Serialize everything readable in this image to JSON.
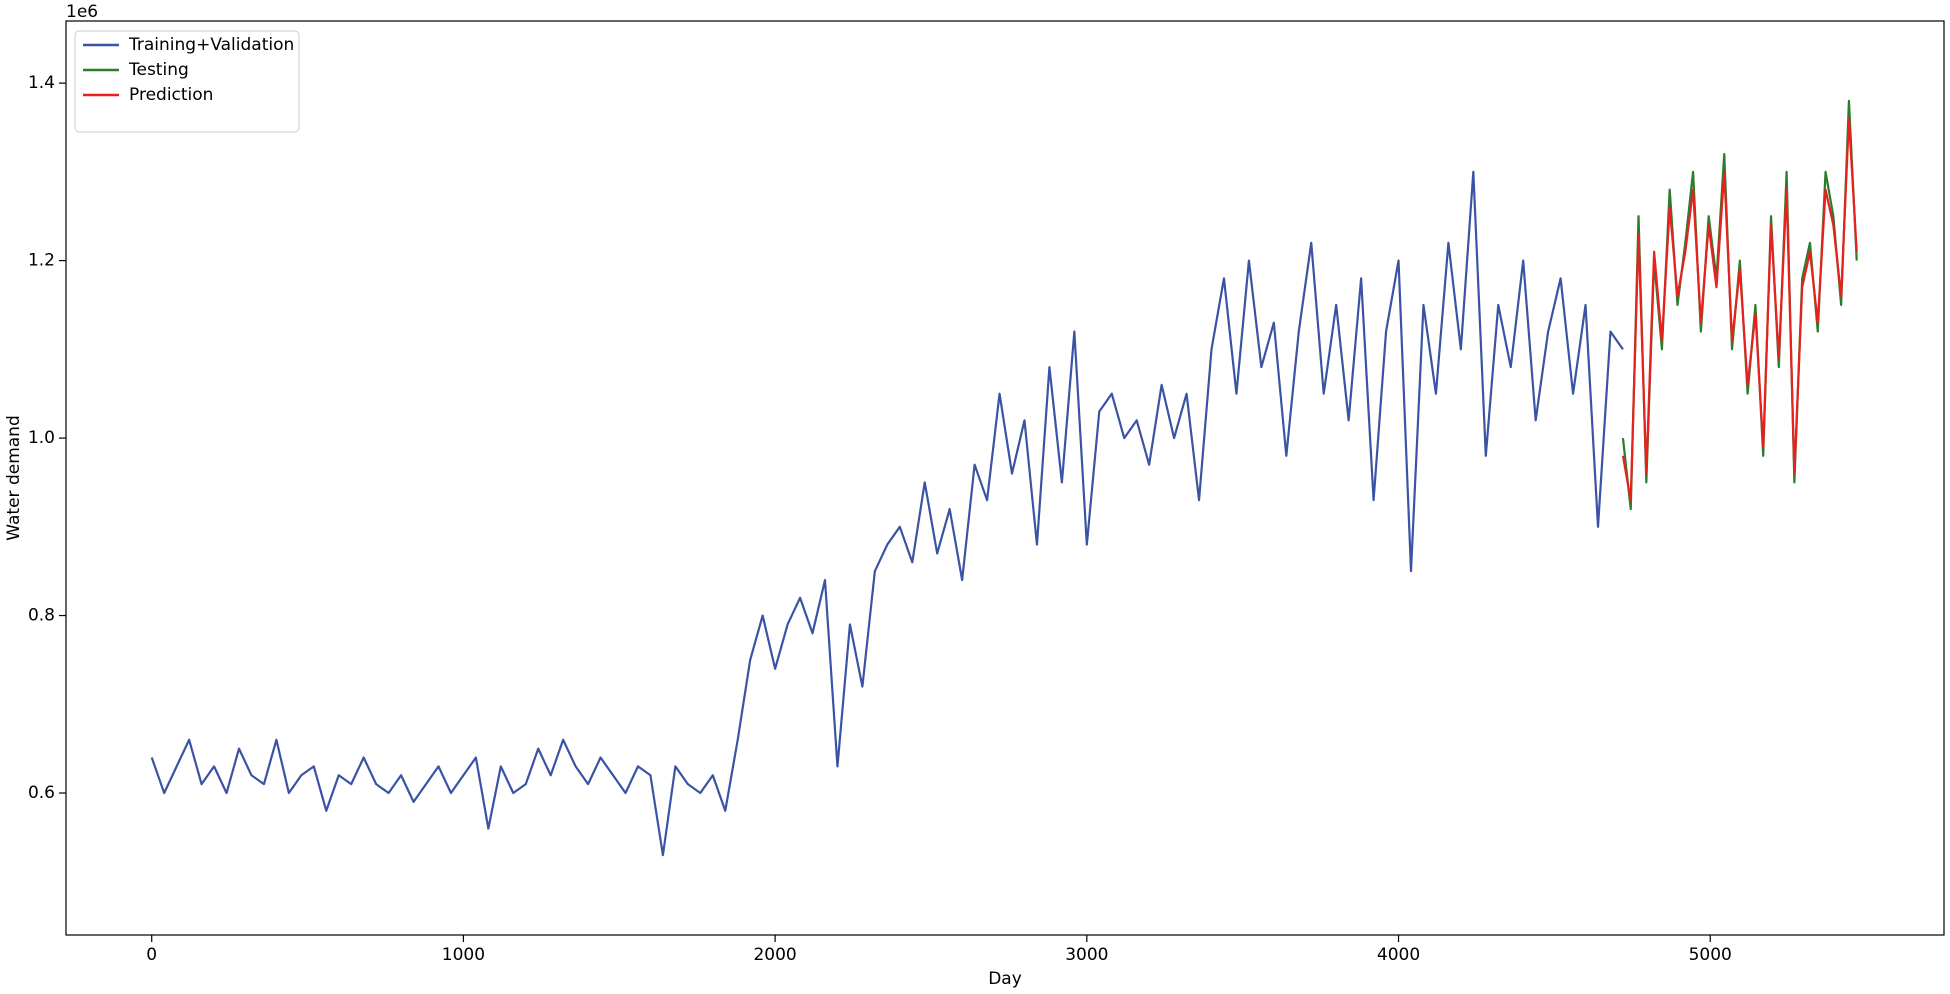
{
  "chart_data": {
    "type": "line",
    "xlabel": "Day",
    "ylabel": "Water demand",
    "y_offset_label": "1e6",
    "xlim": [
      -275,
      5750
    ],
    "xticks": [
      0,
      1000,
      2000,
      3000,
      4000,
      5000
    ],
    "ylim": [
      0.44,
      1.47
    ],
    "yticks": [
      0.6,
      0.8,
      {
        "value": 1,
        "label": "1.0"
      },
      1.2,
      1.4
    ],
    "legend": "upper left",
    "series": [
      {
        "name": "Training+Validation",
        "color": "#3a53a4",
        "x": [
          0,
          40,
          80,
          120,
          160,
          200,
          240,
          280,
          320,
          360,
          400,
          440,
          480,
          520,
          560,
          600,
          640,
          680,
          720,
          760,
          800,
          840,
          880,
          920,
          960,
          1000,
          1040,
          1080,
          1120,
          1160,
          1200,
          1240,
          1280,
          1320,
          1360,
          1400,
          1440,
          1480,
          1520,
          1560,
          1600,
          1640,
          1680,
          1720,
          1760,
          1800,
          1840,
          1880,
          1920,
          1960,
          2000,
          2040,
          2080,
          2120,
          2160,
          2200,
          2240,
          2280,
          2320,
          2360,
          2400,
          2440,
          2480,
          2520,
          2560,
          2600,
          2640,
          2680,
          2720,
          2760,
          2800,
          2840,
          2880,
          2920,
          2960,
          3000,
          3040,
          3080,
          3120,
          3160,
          3200,
          3240,
          3280,
          3320,
          3360,
          3400,
          3440,
          3480,
          3520,
          3560,
          3600,
          3640,
          3680,
          3720,
          3760,
          3800,
          3840,
          3880,
          3920,
          3960,
          4000,
          4040,
          4080,
          4120,
          4160,
          4200,
          4240,
          4280,
          4320,
          4360,
          4400,
          4440,
          4480,
          4520,
          4560,
          4600,
          4640,
          4680,
          4720
        ],
        "values": [
          0.64,
          0.6,
          0.63,
          0.66,
          0.61,
          0.63,
          0.6,
          0.65,
          0.62,
          0.61,
          0.66,
          0.6,
          0.62,
          0.63,
          0.58,
          0.62,
          0.61,
          0.64,
          0.61,
          0.6,
          0.62,
          0.59,
          0.61,
          0.63,
          0.6,
          0.62,
          0.64,
          0.56,
          0.63,
          0.6,
          0.61,
          0.65,
          0.62,
          0.66,
          0.63,
          0.61,
          0.64,
          0.62,
          0.6,
          0.63,
          0.62,
          0.53,
          0.63,
          0.61,
          0.6,
          0.62,
          0.58,
          0.66,
          0.75,
          0.8,
          0.74,
          0.79,
          0.82,
          0.78,
          0.84,
          0.63,
          0.79,
          0.72,
          0.85,
          0.88,
          0.9,
          0.86,
          0.95,
          0.87,
          0.92,
          0.84,
          0.97,
          0.93,
          1.05,
          0.96,
          1.02,
          0.88,
          1.08,
          0.95,
          1.12,
          0.88,
          1.03,
          1.05,
          1.0,
          1.02,
          0.97,
          1.06,
          1.0,
          1.05,
          0.93,
          1.1,
          1.18,
          1.05,
          1.2,
          1.08,
          1.13,
          0.98,
          1.12,
          1.22,
          1.05,
          1.15,
          1.02,
          1.18,
          0.93,
          1.12,
          1.2,
          0.85,
          1.15,
          1.05,
          1.22,
          1.1,
          1.3,
          0.98,
          1.15,
          1.08,
          1.2,
          1.02,
          1.12,
          1.18,
          1.05,
          1.15,
          0.9,
          1.12,
          1.1
        ]
      },
      {
        "name": "Testing",
        "color": "#2a7d2e",
        "x": [
          4720,
          4745,
          4770,
          4795,
          4820,
          4845,
          4870,
          4895,
          4920,
          4945,
          4970,
          4995,
          5020,
          5045,
          5070,
          5095,
          5120,
          5145,
          5170,
          5195,
          5220,
          5245,
          5270,
          5295,
          5320,
          5345,
          5370,
          5395,
          5420,
          5445,
          5470
        ],
        "values": [
          1.0,
          0.92,
          1.25,
          0.95,
          1.2,
          1.1,
          1.28,
          1.15,
          1.22,
          1.3,
          1.12,
          1.25,
          1.18,
          1.32,
          1.1,
          1.2,
          1.05,
          1.15,
          0.98,
          1.25,
          1.08,
          1.3,
          0.95,
          1.18,
          1.22,
          1.12,
          1.3,
          1.25,
          1.15,
          1.38,
          1.2
        ]
      },
      {
        "name": "Prediction",
        "color": "#e8201e",
        "x": [
          4720,
          4745,
          4770,
          4795,
          4820,
          4845,
          4870,
          4895,
          4920,
          4945,
          4970,
          4995,
          5020,
          5045,
          5070,
          5095,
          5120,
          5145,
          5170,
          5195,
          5220,
          5245,
          5270,
          5295,
          5320,
          5345,
          5370,
          5395,
          5420,
          5445,
          5470
        ],
        "values": [
          0.98,
          0.93,
          1.23,
          0.96,
          1.21,
          1.11,
          1.26,
          1.16,
          1.21,
          1.28,
          1.13,
          1.24,
          1.17,
          1.3,
          1.11,
          1.19,
          1.06,
          1.14,
          0.99,
          1.24,
          1.09,
          1.28,
          0.96,
          1.17,
          1.21,
          1.13,
          1.28,
          1.24,
          1.16,
          1.36,
          1.21
        ]
      }
    ]
  }
}
